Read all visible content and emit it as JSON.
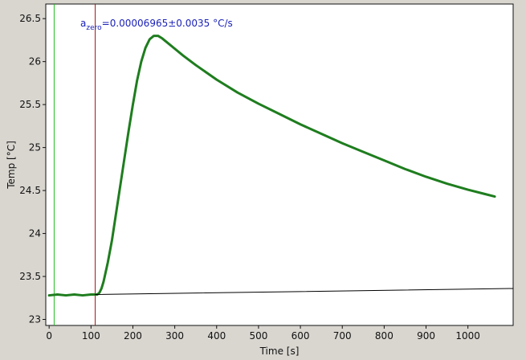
{
  "chart_data": {
    "type": "line",
    "xlabel": "Time [s]",
    "ylabel": "Temp [°C]",
    "xlim": [
      -8,
      1108
    ],
    "ylim": [
      22.93,
      26.67
    ],
    "x_ticks": [
      0,
      100,
      200,
      300,
      400,
      500,
      600,
      700,
      800,
      900,
      1000
    ],
    "y_ticks": [
      23,
      23.5,
      24,
      24.5,
      25,
      25.5,
      26,
      26.5
    ],
    "x_tick_labels": [
      "0",
      "100",
      "200",
      "300",
      "400",
      "500",
      "600",
      "700",
      "800",
      "900",
      "1000"
    ],
    "y_tick_labels": [
      "23",
      "23.5",
      "24",
      "24.5",
      "25",
      "25.5",
      "26",
      "26.5"
    ],
    "grid": false,
    "annotation": {
      "prefix": "a",
      "subscript": "zero",
      "text": "=0.00006965±0.0035 °C/s"
    },
    "vertical_markers": [
      {
        "x": 12,
        "color": "#22bb22"
      },
      {
        "x": 110,
        "color": "#a01818"
      }
    ],
    "series": [
      {
        "color": "#1e7d1e",
        "points": [
          [
            0,
            23.28
          ],
          [
            20,
            23.29
          ],
          [
            40,
            23.28
          ],
          [
            60,
            23.29
          ],
          [
            80,
            23.28
          ],
          [
            100,
            23.29
          ],
          [
            115,
            23.29
          ],
          [
            120,
            23.31
          ],
          [
            125,
            23.36
          ],
          [
            130,
            23.44
          ],
          [
            140,
            23.66
          ],
          [
            150,
            23.92
          ],
          [
            160,
            24.24
          ],
          [
            170,
            24.56
          ],
          [
            180,
            24.88
          ],
          [
            190,
            25.2
          ],
          [
            200,
            25.5
          ],
          [
            210,
            25.78
          ],
          [
            220,
            26.0
          ],
          [
            230,
            26.16
          ],
          [
            240,
            26.26
          ],
          [
            250,
            26.3
          ],
          [
            260,
            26.3
          ],
          [
            270,
            26.27
          ],
          [
            280,
            26.23
          ],
          [
            300,
            26.15
          ],
          [
            320,
            26.07
          ],
          [
            350,
            25.96
          ],
          [
            400,
            25.79
          ],
          [
            450,
            25.64
          ],
          [
            500,
            25.51
          ],
          [
            550,
            25.39
          ],
          [
            600,
            25.27
          ],
          [
            650,
            25.16
          ],
          [
            700,
            25.05
          ],
          [
            750,
            24.95
          ],
          [
            800,
            24.85
          ],
          [
            850,
            24.75
          ],
          [
            900,
            24.66
          ],
          [
            950,
            24.58
          ],
          [
            1000,
            24.51
          ],
          [
            1040,
            24.46
          ],
          [
            1064,
            24.43
          ]
        ]
      },
      {
        "color": "#000000",
        "points": [
          [
            110,
            23.29
          ],
          [
            1108,
            23.36
          ]
        ]
      }
    ]
  }
}
